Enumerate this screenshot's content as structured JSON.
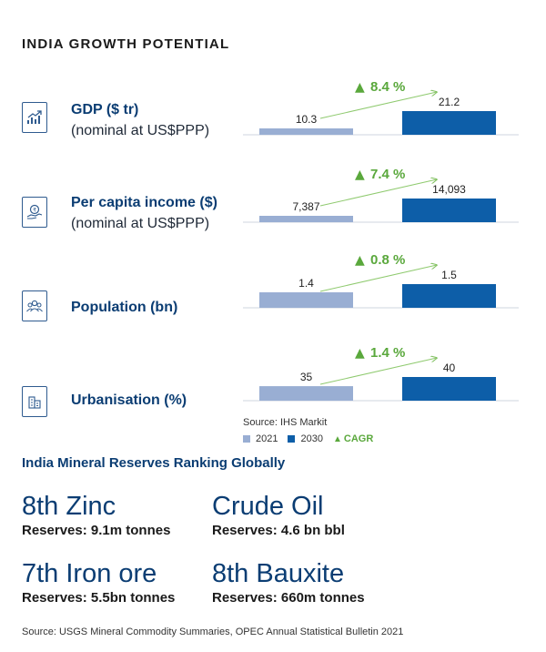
{
  "title": "INDIA GROWTH POTENTIAL",
  "colors": {
    "y2021": "#99aed3",
    "y2030": "#0d5ea8",
    "cagr": "#5aa83c",
    "heading": "#0b3d73"
  },
  "chart_data": {
    "type": "bar",
    "categories": [
      "2021",
      "2030"
    ],
    "metrics": [
      {
        "label": "GDP ($ tr)",
        "sublabel": "(nominal at US$PPP)",
        "icon": "growth-chart-icon",
        "values": [
          10.3,
          21.2
        ],
        "value_labels": [
          "10.3",
          "21.2"
        ],
        "cagr": "8.4 %"
      },
      {
        "label": "Per capita income ($)",
        "sublabel": "(nominal at US$PPP)",
        "icon": "hand-coin-icon",
        "values": [
          7387,
          14093
        ],
        "value_labels": [
          "7,387",
          "14,093"
        ],
        "cagr": "7.4 %"
      },
      {
        "label": "Population (bn)",
        "sublabel": "",
        "icon": "people-icon",
        "values": [
          1.4,
          1.5
        ],
        "value_labels": [
          "1.4",
          "1.5"
        ],
        "cagr": "0.8 %"
      },
      {
        "label": "Urbanisation (%)",
        "sublabel": "",
        "icon": "city-buildings-icon",
        "values": [
          35,
          40
        ],
        "value_labels": [
          "35",
          "40"
        ],
        "cagr": "1.4 %"
      }
    ],
    "legend": [
      "2021",
      "2030",
      "CAGR"
    ],
    "source": "Source: IHS Markit"
  },
  "reserves": {
    "heading": "India Mineral Reserves Ranking Globally",
    "items": [
      {
        "rank": "8th Zinc",
        "detail": "Reserves: 9.1m tonnes"
      },
      {
        "rank": "Crude Oil",
        "detail": "Reserves: 4.6 bn bbl"
      },
      {
        "rank": "7th Iron ore",
        "detail": "Reserves: 5.5bn tonnes"
      },
      {
        "rank": "8th Bauxite",
        "detail": "Reserves: 660m tonnes"
      }
    ]
  },
  "footer": "Source: USGS Mineral Commodity Summaries, OPEC Annual Statistical Bulletin 2021"
}
